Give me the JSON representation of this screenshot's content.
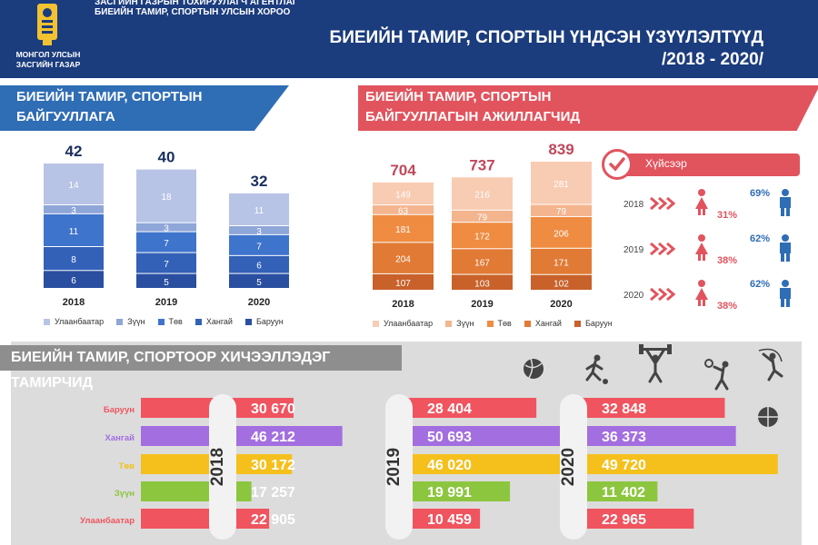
{
  "header": {
    "agency_line1": "ЗАСГИЙН ГАЗРЫН ТОХИРУУЛАГЧ АГЕНТЛАГ",
    "agency_line2": "БИЕИЙН ТАМИР, СПОРТЫН УЛСЫН ХОРОО",
    "gov_line1": "МОНГОЛ УЛСЫН",
    "gov_line2": "ЗАСГИЙН ГАЗАР",
    "title_line1": "БИЕИЙН ТАМИР, СПОРТЫН ҮНДСЭН ҮЗҮҮЛЭЛТҮҮД",
    "title_line2": "/2018 - 2020/"
  },
  "colors": {
    "header_bg": "#1b3c7d",
    "blue_banner": "#2f6db5",
    "red_banner": "#e1545e",
    "grey_banner": "#8e8e8e"
  },
  "sections": {
    "orgs_title_line1": "БИЕИЙН ТАМИР, СПОРТЫН",
    "orgs_title_line2": "БАЙГУУЛЛАГА",
    "staff_title_line1": "БИЕИЙН ТАМИР, СПОРТЫН",
    "staff_title_line2": "БАЙГУУЛЛАГЫН АЖИЛЛАГЧИД",
    "athletes_title": "БИЕИЙН ТАМИР, СПОРТООР ХИЧЭЭЛЛЭДЭГ ТАМИРЧИД",
    "gender_title": "Хүйсээр"
  },
  "chart_data": [
    {
      "type": "bar",
      "stacked": true,
      "categories": [
        "2018",
        "2019",
        "2020"
      ],
      "totals": [
        42,
        40,
        32
      ],
      "series": [
        {
          "name": "Баруун",
          "values": [
            6,
            5,
            5
          ],
          "color": "#2a4fa0"
        },
        {
          "name": "Хангай",
          "values": [
            8,
            7,
            6
          ],
          "color": "#3461b8"
        },
        {
          "name": "Төв",
          "values": [
            11,
            7,
            7
          ],
          "color": "#3f74cc"
        },
        {
          "name": "Зүүн",
          "values": [
            3,
            3,
            3
          ],
          "color": "#8fa6d8"
        },
        {
          "name": "Улаанбаатар",
          "values": [
            14,
            18,
            11
          ],
          "color": "#b8c4e6"
        }
      ],
      "legend": [
        "Улаанбаатар",
        "Зүүн",
        "Төв",
        "Хангай",
        "Баруун"
      ],
      "legend_colors": [
        "#b8c4e6",
        "#8fa6d8",
        "#3f74cc",
        "#3461b8",
        "#2a4fa0"
      ]
    },
    {
      "type": "bar",
      "stacked": true,
      "categories": [
        "2018",
        "2019",
        "2020"
      ],
      "totals": [
        704,
        737,
        839
      ],
      "series": [
        {
          "name": "Баруун",
          "values": [
            107,
            103,
            102
          ],
          "color": "#c8612a"
        },
        {
          "name": "Хангай",
          "values": [
            204,
            167,
            171
          ],
          "color": "#e17a35"
        },
        {
          "name": "Төв",
          "values": [
            181,
            172,
            206
          ],
          "color": "#ef8c42"
        },
        {
          "name": "Зүүн",
          "values": [
            63,
            79,
            79
          ],
          "color": "#f3b48e"
        },
        {
          "name": "Улаанбаатар",
          "values": [
            149,
            216,
            281
          ],
          "color": "#f8cbb3"
        }
      ],
      "legend": [
        "Улаанбаатар",
        "Зүүн",
        "Төв",
        "Хангай",
        "Баруун"
      ],
      "legend_colors": [
        "#f8cbb3",
        "#f3b48e",
        "#ef8c42",
        "#e17a35",
        "#c8612a"
      ]
    },
    {
      "type": "table",
      "title": "Хүйсээр",
      "years": [
        "2018",
        "2019",
        "2020"
      ],
      "female_pct": [
        "31%",
        "38%",
        "38%"
      ],
      "male_pct": [
        "69%",
        "62%",
        "62%"
      ]
    },
    {
      "type": "bar",
      "orientation": "horizontal",
      "categories": [
        "Баруун",
        "Хангай",
        "Төв",
        "Зүүн",
        "Улаанбаатар"
      ],
      "category_colors": [
        "#f0545f",
        "#a36ee0",
        "#f5c01c",
        "#8cc63f",
        "#f0545f"
      ],
      "years": [
        "2018",
        "2019",
        "2020"
      ],
      "series": [
        {
          "name": "2018",
          "values": [
            "30 670",
            "46 212",
            "30 172",
            "17 257",
            "22 905"
          ]
        },
        {
          "name": "2019",
          "values": [
            "28 404",
            "50 693",
            "46 020",
            "19 991",
            "10 459"
          ]
        },
        {
          "name": "2020",
          "values": [
            "32 848",
            "36 373",
            "49 720",
            "11 402",
            "22 965"
          ]
        }
      ]
    }
  ]
}
